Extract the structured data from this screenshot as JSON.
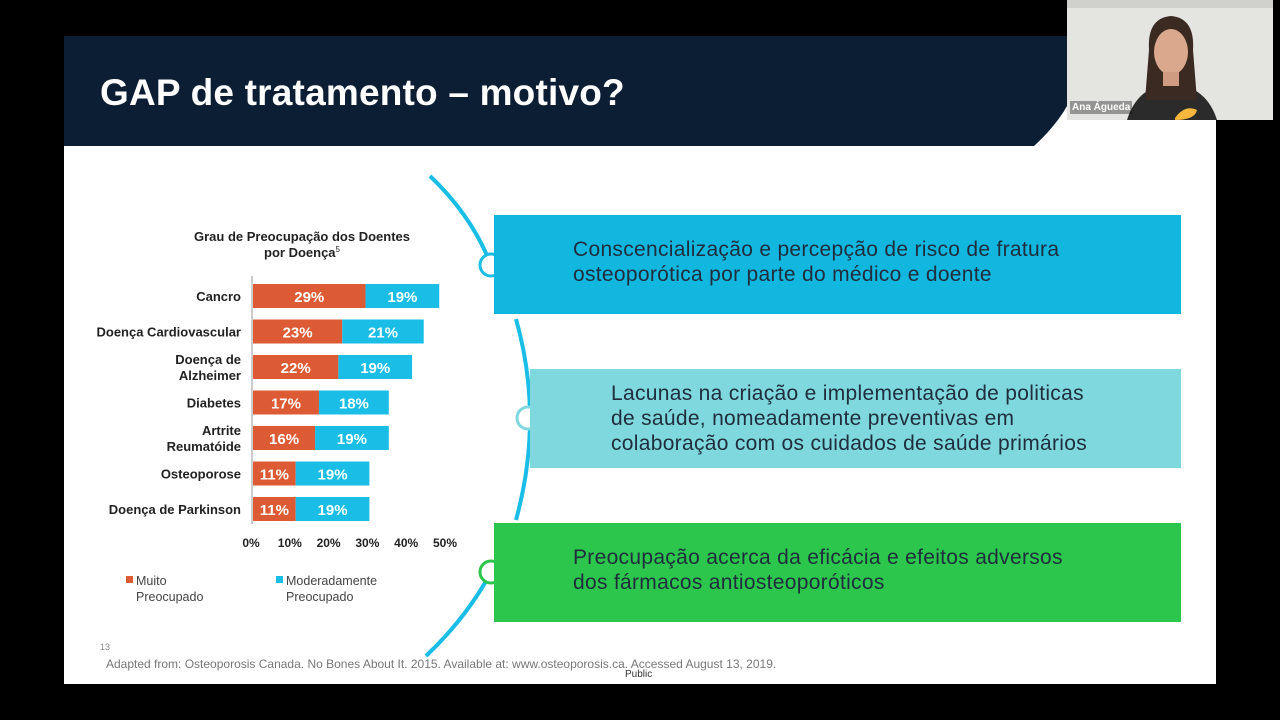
{
  "slide": {
    "title": "GAP de tratamento – motivo?",
    "page_number": "13",
    "source": "Adapted from: Osteoporosis Canada. No Bones About It. 2015. Available at: www.osteoporosis.ca. Accessed August 13, 2019.",
    "classification": "Public"
  },
  "boxes": [
    {
      "lines": [
        "Conscencialização e percepção de risco de fratura",
        "osteoporótica por parte do médico e doente"
      ],
      "color": "#11b7df"
    },
    {
      "lines": [
        "Lacunas na criação e implementação de politicas",
        "de saúde, nomeadamente preventivas em",
        "colaboração com os cuidados de saúde primários"
      ],
      "color": "#7fd8de"
    },
    {
      "lines": [
        "Preocupação acerca da eficácia e efeitos adversos",
        "dos fármacos antiosteoporóticos"
      ],
      "color": "#2bc64b"
    }
  ],
  "webcam": {
    "name": "Ana Águeda"
  },
  "chart_data": {
    "type": "bar",
    "orientation": "horizontal",
    "stacked": true,
    "title": [
      "Grau de Preocupação dos Doentes",
      "por Doença"
    ],
    "title_superscript": "5",
    "categories": [
      [
        "Cancro"
      ],
      [
        "Doença Cardiovascular"
      ],
      [
        "Doença de",
        "Alzheimer"
      ],
      [
        "Diabetes"
      ],
      [
        "Artrite",
        "Reumatóide"
      ],
      [
        "Osteoporose"
      ],
      [
        "Doença de Parkinson"
      ]
    ],
    "series": [
      {
        "name": [
          "Muito",
          "Preocupado"
        ],
        "values": [
          29,
          23,
          22,
          17,
          16,
          11,
          11
        ],
        "color": "#dc5b34"
      },
      {
        "name": [
          "Moderadamente",
          "Preocupado"
        ],
        "values": [
          19,
          21,
          19,
          18,
          19,
          19,
          19
        ],
        "color": "#19bde6"
      }
    ],
    "value_suffix": "%",
    "xlim": [
      0,
      50
    ],
    "xticks": [
      "0%",
      "10%",
      "20%",
      "30%",
      "40%",
      "50%"
    ],
    "legend_position": "bottom",
    "grid": false
  }
}
